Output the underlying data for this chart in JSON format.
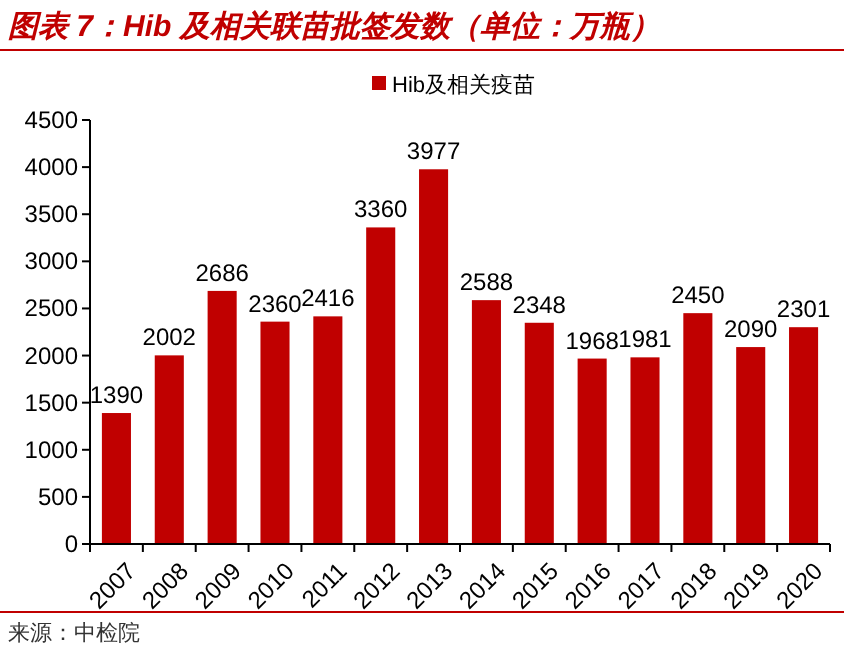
{
  "chart_data": {
    "type": "bar",
    "title": "图表 7：Hib 及相关联苗批签发数（单位：万瓶）",
    "categories": [
      "2007",
      "2008",
      "2009",
      "2010",
      "2011",
      "2012",
      "2013",
      "2014",
      "2015",
      "2016",
      "2017",
      "2018",
      "2019",
      "2020"
    ],
    "series": [
      {
        "name": "Hib及相关疫苗",
        "color": "#c00000",
        "values": [
          1390,
          2002,
          2686,
          2360,
          2416,
          3360,
          3977,
          2588,
          2348,
          1968,
          1981,
          2450,
          2090,
          2301
        ]
      }
    ],
    "ylim": [
      0,
      4500
    ],
    "yticks": [
      0,
      500,
      1000,
      1500,
      2000,
      2500,
      3000,
      3500,
      4000,
      4500
    ],
    "data_labels": true,
    "legend": "top",
    "annotations": [
      "来源：中检院"
    ]
  }
}
